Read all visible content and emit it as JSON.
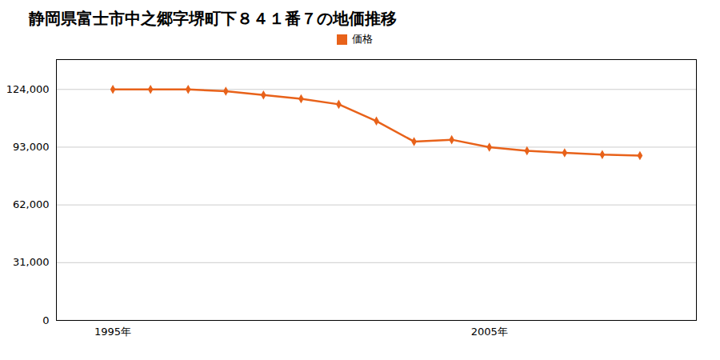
{
  "chart_data": {
    "type": "line",
    "title": "静岡県富士市中之郷字堺町下８４１番７の地価推移",
    "x": [
      1995,
      1996,
      1997,
      1998,
      1999,
      2000,
      2001,
      2002,
      2003,
      2004,
      2005,
      2006,
      2007,
      2008,
      2009
    ],
    "series": [
      {
        "name": "価格",
        "color": "#E8621A",
        "marker": "diamond",
        "values": [
          124000,
          124000,
          124000,
          123000,
          121000,
          119000,
          116000,
          107000,
          96000,
          97000,
          93000,
          91000,
          90000,
          89000,
          88500
        ]
      }
    ],
    "xlim": [
      1993.5,
      2010.5
    ],
    "xticks": [
      {
        "value": 1995,
        "label": "1995年"
      },
      {
        "value": 2005,
        "label": "2005年"
      }
    ],
    "ylim": [
      0,
      140000
    ],
    "yticks": [
      0,
      {
        "value": 31000,
        "label": "31,000"
      },
      {
        "value": 62000,
        "label": "62,000"
      },
      {
        "value": 93000,
        "label": "93,000"
      },
      {
        "value": 124000,
        "label": "124,000"
      }
    ],
    "grid": true,
    "legend": "top"
  }
}
